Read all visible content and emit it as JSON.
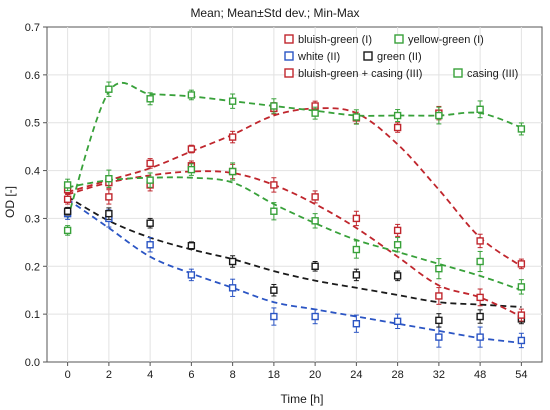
{
  "chart_data": {
    "type": "line",
    "title": "Mean;  Mean±Std dev.; Min-Max",
    "xlabel": "Time [h]",
    "ylabel": "OD [-]",
    "categories": [
      "0",
      "2",
      "4",
      "6",
      "8",
      "18",
      "20",
      "24",
      "28",
      "32",
      "48",
      "54"
    ],
    "ylim": [
      0.0,
      0.7
    ],
    "yticks": [
      "0.0",
      "0.1",
      "0.2",
      "0.3",
      "0.4",
      "0.5",
      "0.6",
      "0.7"
    ],
    "grid": true,
    "legend_position": "top-right",
    "series": [
      {
        "name": "bluish-green (I)",
        "color": "#c0262d",
        "values": [
          0.36,
          0.375,
          0.415,
          0.445,
          0.47,
          0.53,
          0.535,
          0.51,
          0.49,
          0.52,
          0.253,
          0.205
        ],
        "fit": [
          0.355,
          0.38,
          0.405,
          0.44,
          0.475,
          0.515,
          0.53,
          0.52,
          0.455,
          0.36,
          0.26,
          0.2
        ]
      },
      {
        "name": "yellow-green (I)",
        "color": "#38a13a",
        "values": [
          0.275,
          0.57,
          0.55,
          0.558,
          0.545,
          0.535,
          0.52,
          0.512,
          0.515,
          0.515,
          0.528,
          0.487
        ],
        "fit": [
          0.3,
          0.565,
          0.56,
          0.555,
          0.545,
          0.535,
          0.525,
          0.515,
          0.515,
          0.515,
          0.52,
          0.49
        ]
      },
      {
        "name": "white (II)",
        "color": "#2b55c4",
        "values": [
          0.31,
          0.3,
          0.245,
          0.182,
          0.155,
          0.095,
          0.095,
          0.08,
          0.085,
          0.052,
          0.052,
          0.045
        ],
        "fit": [
          0.34,
          0.28,
          0.22,
          0.185,
          0.155,
          0.125,
          0.11,
          0.095,
          0.08,
          0.065,
          0.05,
          0.04
        ]
      },
      {
        "name": "green (II)",
        "color": "#1a1a1a",
        "values": [
          0.315,
          0.31,
          0.29,
          0.243,
          0.21,
          0.15,
          0.2,
          0.182,
          0.18,
          0.087,
          0.095,
          0.09
        ],
        "fit": [
          0.345,
          0.295,
          0.26,
          0.235,
          0.215,
          0.19,
          0.17,
          0.155,
          0.14,
          0.125,
          0.12,
          0.115
        ]
      },
      {
        "name": "bluish-green + casing (III)",
        "color": "#c0262d",
        "values": [
          0.34,
          0.345,
          0.37,
          0.41,
          0.398,
          0.37,
          0.345,
          0.3,
          0.275,
          0.138,
          0.135,
          0.098
        ],
        "fit": [
          0.35,
          0.375,
          0.39,
          0.398,
          0.395,
          0.37,
          0.33,
          0.28,
          0.22,
          0.16,
          0.135,
          0.095
        ]
      },
      {
        "name": "casing (III)",
        "color": "#38a13a",
        "values": [
          0.37,
          0.383,
          0.38,
          0.402,
          0.398,
          0.315,
          0.295,
          0.235,
          0.245,
          0.195,
          0.21,
          0.157
        ],
        "fit": [
          0.365,
          0.38,
          0.385,
          0.385,
          0.375,
          0.33,
          0.29,
          0.255,
          0.23,
          0.205,
          0.18,
          0.15
        ]
      }
    ]
  }
}
